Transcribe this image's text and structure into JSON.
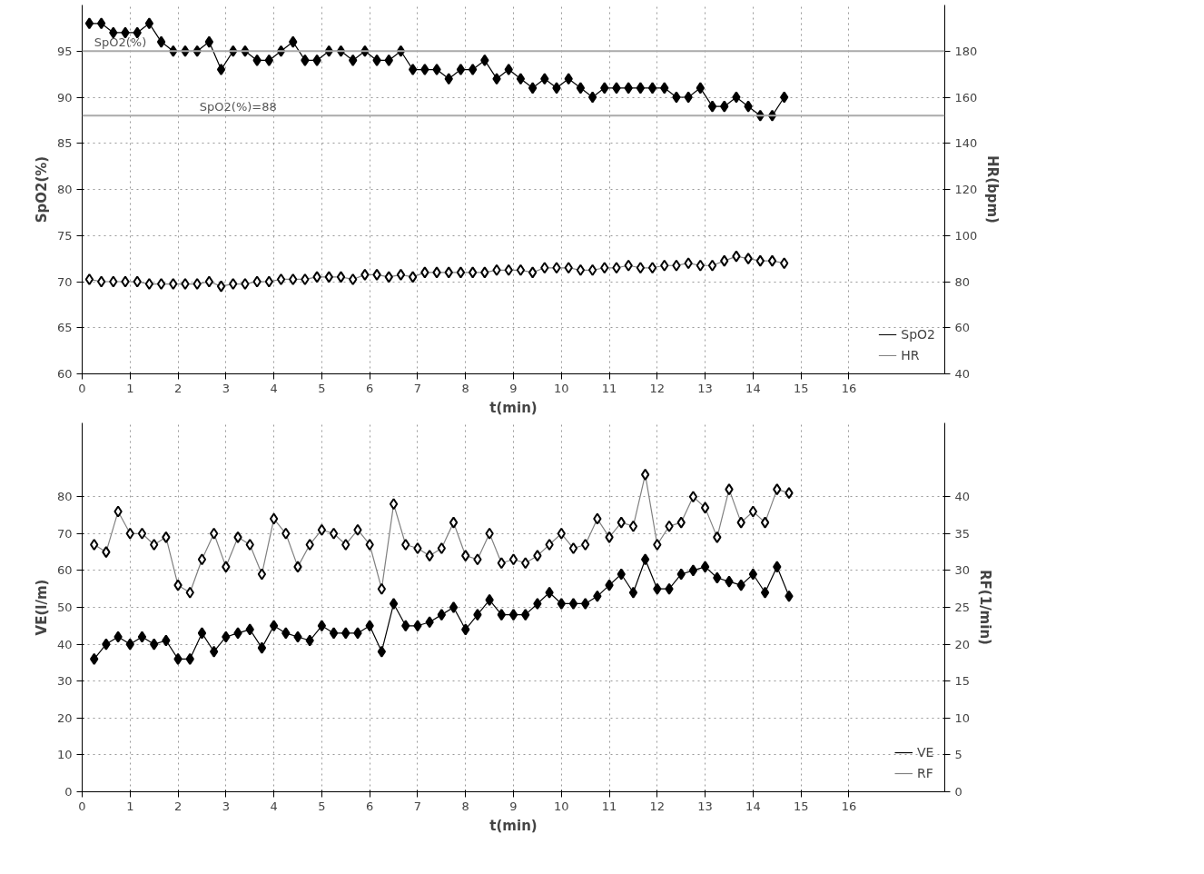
{
  "chart_data": [
    {
      "type": "line",
      "xlabel": "t(min)",
      "ylabel": "SpO2(%)",
      "y2label": "HR(bpm)",
      "marker": "diamond",
      "grid": true,
      "legend": "bottom right",
      "xlim": [
        0,
        18
      ],
      "xticks": [
        0,
        1,
        2,
        3,
        4,
        5,
        6,
        7,
        8,
        9,
        10,
        11,
        12,
        13,
        14,
        15,
        16
      ],
      "ylim": [
        60,
        100
      ],
      "yticks": [
        60,
        65,
        70,
        75,
        80,
        85,
        90,
        95
      ],
      "y2lim": [
        40,
        200
      ],
      "y2ticks": [
        40,
        60,
        80,
        100,
        120,
        140,
        160,
        180
      ],
      "x": [
        0.15,
        0.4,
        0.65,
        0.9,
        1.15,
        1.4,
        1.65,
        1.9,
        2.15,
        2.4,
        2.65,
        2.9,
        3.15,
        3.4,
        3.65,
        3.9,
        4.15,
        4.4,
        4.65,
        4.9,
        5.15,
        5.4,
        5.65,
        5.9,
        6.15,
        6.4,
        6.65,
        6.9,
        7.15,
        7.4,
        7.65,
        7.9,
        8.15,
        8.4,
        8.65,
        8.9,
        9.15,
        9.4,
        9.65,
        9.9,
        10.15,
        10.4,
        10.65,
        10.9,
        11.15,
        11.4,
        11.65,
        11.9,
        12.15,
        12.4,
        12.65,
        12.9,
        13.15,
        13.4,
        13.65,
        13.9,
        14.15,
        14.4,
        14.65
      ],
      "series": [
        {
          "name": "SpO2",
          "color": "#000000",
          "values": [
            98,
            98,
            97,
            97,
            97,
            98,
            96,
            95,
            95,
            95,
            96,
            93,
            95,
            95,
            94,
            94,
            95,
            96,
            94,
            94,
            95,
            95,
            94,
            95,
            94,
            94,
            95,
            93,
            93,
            93,
            92,
            93,
            93,
            94,
            92,
            93,
            92,
            91,
            92,
            91,
            92,
            91,
            90,
            91,
            91,
            91,
            91,
            91,
            91,
            90,
            90,
            91,
            89,
            89,
            90,
            89,
            88,
            88,
            90
          ]
        },
        {
          "name": "HR",
          "color": "#808080",
          "axis": "y2",
          "values": [
            81,
            80,
            80,
            80,
            80,
            79,
            79,
            79,
            79,
            79,
            80,
            78,
            79,
            79,
            80,
            80,
            81,
            81,
            81,
            82,
            82,
            82,
            81,
            83,
            83,
            82,
            83,
            82,
            84,
            84,
            84,
            84,
            84,
            84,
            85,
            85,
            85,
            84,
            86,
            86,
            86,
            85,
            85,
            86,
            86,
            87,
            86,
            86,
            87,
            87,
            88,
            87,
            87,
            89,
            91,
            90,
            89,
            89,
            88
          ]
        }
      ],
      "ref_lines": [
        {
          "axis": "y",
          "value": 95,
          "label": "SpO2(%)",
          "color": "#aaaaaa"
        },
        {
          "axis": "y",
          "value": 88,
          "label": "SpO2(%)=88",
          "color": "#aaaaaa"
        }
      ]
    },
    {
      "type": "line",
      "xlabel": "t(min)",
      "ylabel": "VE(l/m)",
      "y2label": "RF(1/min)",
      "marker": "diamond",
      "grid": true,
      "legend": "bottom right",
      "xlim": [
        0,
        18
      ],
      "xticks": [
        0,
        1,
        2,
        3,
        4,
        5,
        6,
        7,
        8,
        9,
        10,
        11,
        12,
        13,
        14,
        15,
        16
      ],
      "ylim": [
        0,
        100
      ],
      "yticks": [
        0,
        10,
        20,
        30,
        40,
        50,
        60,
        70,
        80
      ],
      "y2lim": [
        0,
        50
      ],
      "y2ticks": [
        0,
        5,
        10,
        15,
        20,
        25,
        30,
        35,
        40
      ],
      "x": [
        0.25,
        0.5,
        0.75,
        1.0,
        1.25,
        1.5,
        1.75,
        2.0,
        2.25,
        2.5,
        2.75,
        3.0,
        3.25,
        3.5,
        3.75,
        4.0,
        4.25,
        4.5,
        4.75,
        5.0,
        5.25,
        5.5,
        5.75,
        6.0,
        6.25,
        6.5,
        6.75,
        7.0,
        7.25,
        7.5,
        7.75,
        8.0,
        8.25,
        8.5,
        8.75,
        9.0,
        9.25,
        9.5,
        9.75,
        10.0,
        10.25,
        10.5,
        10.75,
        11.0,
        11.25,
        11.5,
        11.75,
        12.0,
        12.25,
        12.5,
        12.75,
        13.0,
        13.25,
        13.5,
        13.75,
        14.0,
        14.25,
        14.5,
        14.75
      ],
      "series": [
        {
          "name": "VE",
          "color": "#000000",
          "values": [
            36,
            40,
            42,
            40,
            42,
            40,
            41,
            36,
            36,
            43,
            38,
            42,
            43,
            44,
            39,
            45,
            43,
            42,
            41,
            45,
            43,
            43,
            43,
            45,
            38,
            51,
            45,
            45,
            46,
            48,
            50,
            44,
            48,
            52,
            48,
            48,
            48,
            51,
            54,
            51,
            51,
            51,
            53,
            56,
            59,
            54,
            63,
            55,
            55,
            59,
            60,
            61,
            58,
            57,
            56,
            59,
            54,
            61,
            53
          ]
        },
        {
          "name": "RF",
          "color": "#808080",
          "axis": "y2",
          "values": [
            33.5,
            32.5,
            38,
            35,
            35,
            33.5,
            34.5,
            28,
            27,
            31.5,
            35,
            30.5,
            34.5,
            33.5,
            29.5,
            37,
            35,
            30.5,
            33.5,
            35.5,
            35,
            33.5,
            35.5,
            33.5,
            27.5,
            39,
            33.5,
            33,
            32,
            33,
            36.5,
            32,
            31.5,
            35,
            31,
            31.5,
            31,
            32,
            33.5,
            35,
            33,
            33.5,
            37,
            34.5,
            36.5,
            36,
            43,
            33.5,
            36,
            36.5,
            40,
            38.5,
            34.5,
            41,
            36.5,
            38,
            36.5,
            41,
            40.5
          ]
        }
      ]
    }
  ]
}
